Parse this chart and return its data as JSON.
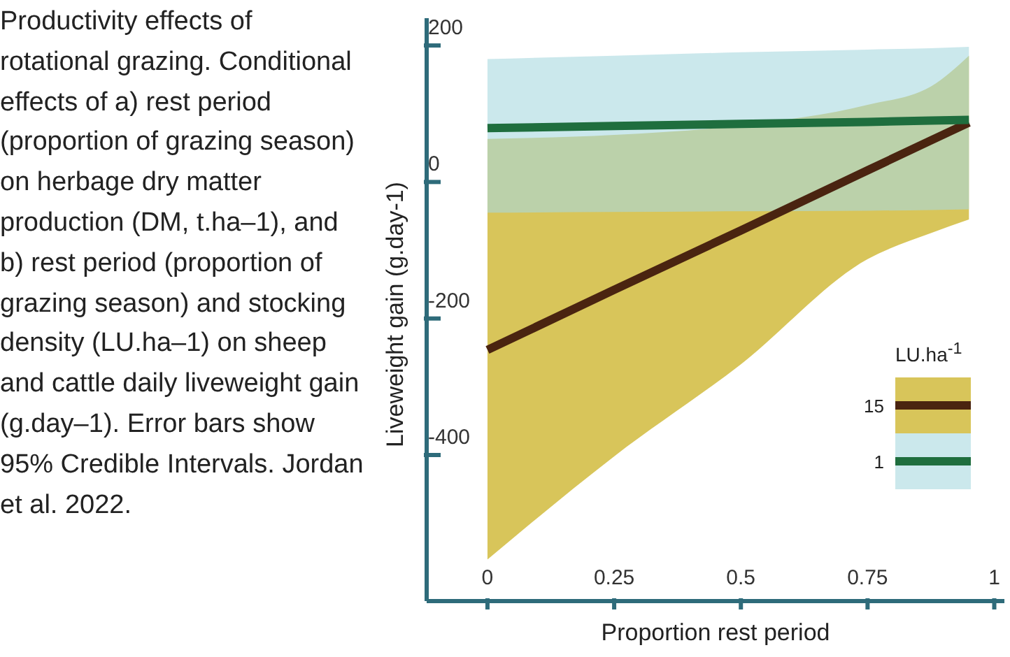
{
  "chart_data": {
    "type": "line",
    "annotations": [
      "Productivity effects of rotational grazing. Conditional effects of a) rest period (proportion of grazing season) on herbage dry matter production (DM, t.ha–1), and b) rest period (proportion of grazing season) and stocking density (LU.ha–1) on sheep and cattle daily liveweight gain (g.day–1). Error bars show 95% Credible Intervals. Jordan et al. 2022."
    ],
    "xlabel": "Proportion rest period",
    "ylabel": "Liveweight gain (g.day-1)",
    "legend_title": "LU.ha$^{-1}$",
    "x": [
      0,
      0.25,
      0.5,
      0.75,
      0.875,
      0.95
    ],
    "series": [
      {
        "name": "15",
        "color": "#4a2410",
        "values": [
          -246,
          -158,
          -71,
          17,
          61,
          87
        ],
        "lower": [
          -553,
          -402,
          -267,
          -113,
          -75,
          -55
        ],
        "upper": [
          63,
          69,
          83,
          113,
          140,
          185
        ]
      },
      {
        "name": "1",
        "color": "#1f6e3e",
        "values": [
          79,
          82,
          85,
          88,
          90,
          91
        ],
        "lower": [
          -45,
          -44,
          -43,
          -42,
          -41,
          -40
        ],
        "upper": [
          180,
          185,
          190,
          194,
          196,
          198
        ]
      }
    ],
    "xlim": [
      -0.12,
      1.02
    ],
    "xticks": [
      0,
      0.25,
      0.5,
      0.75,
      1
    ],
    "ylim": [
      -614,
      240
    ],
    "yticks": [
      -400,
      -200,
      0,
      200
    ],
    "grid": false,
    "legend": "bottom right",
    "marker": "none",
    "line_style": "solid"
  }
}
